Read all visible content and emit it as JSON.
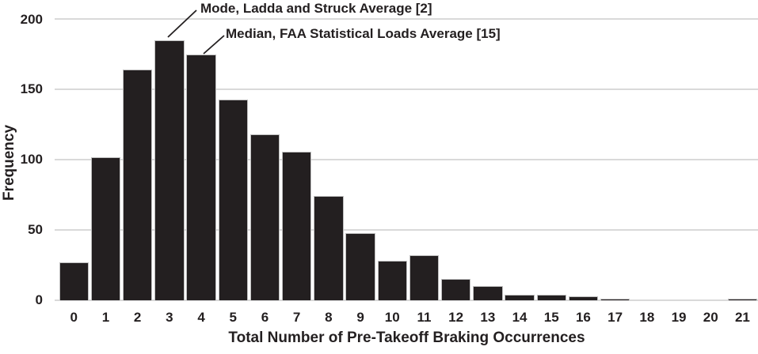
{
  "chart_data": {
    "type": "bar",
    "title": "",
    "xlabel": "Total Number of Pre-Takeoff Braking Occurrences",
    "ylabel": "Frequency",
    "categories": [
      "0",
      "1",
      "2",
      "3",
      "4",
      "5",
      "6",
      "7",
      "8",
      "9",
      "10",
      "11",
      "12",
      "13",
      "14",
      "15",
      "16",
      "17",
      "18",
      "19",
      "20",
      "21"
    ],
    "values": [
      27,
      102,
      164,
      185,
      175,
      143,
      118,
      106,
      74,
      48,
      28,
      32,
      15,
      10,
      4,
      4,
      3,
      1,
      0,
      0,
      0,
      1
    ],
    "ylim": [
      0,
      200
    ],
    "yticks": [
      0,
      50,
      100,
      150,
      200
    ],
    "legend_position": "none",
    "grid": "horizontal",
    "bar_color": "#231f20",
    "gridline_color": "#d9d9d9",
    "text_color": "#231f20",
    "annotations": [
      {
        "text": "Mode, Ladda and Struck Average [2]",
        "points_to_category": "3"
      },
      {
        "text": "Median, FAA Statistical Loads Average [15]",
        "points_to_category": "4"
      }
    ]
  }
}
